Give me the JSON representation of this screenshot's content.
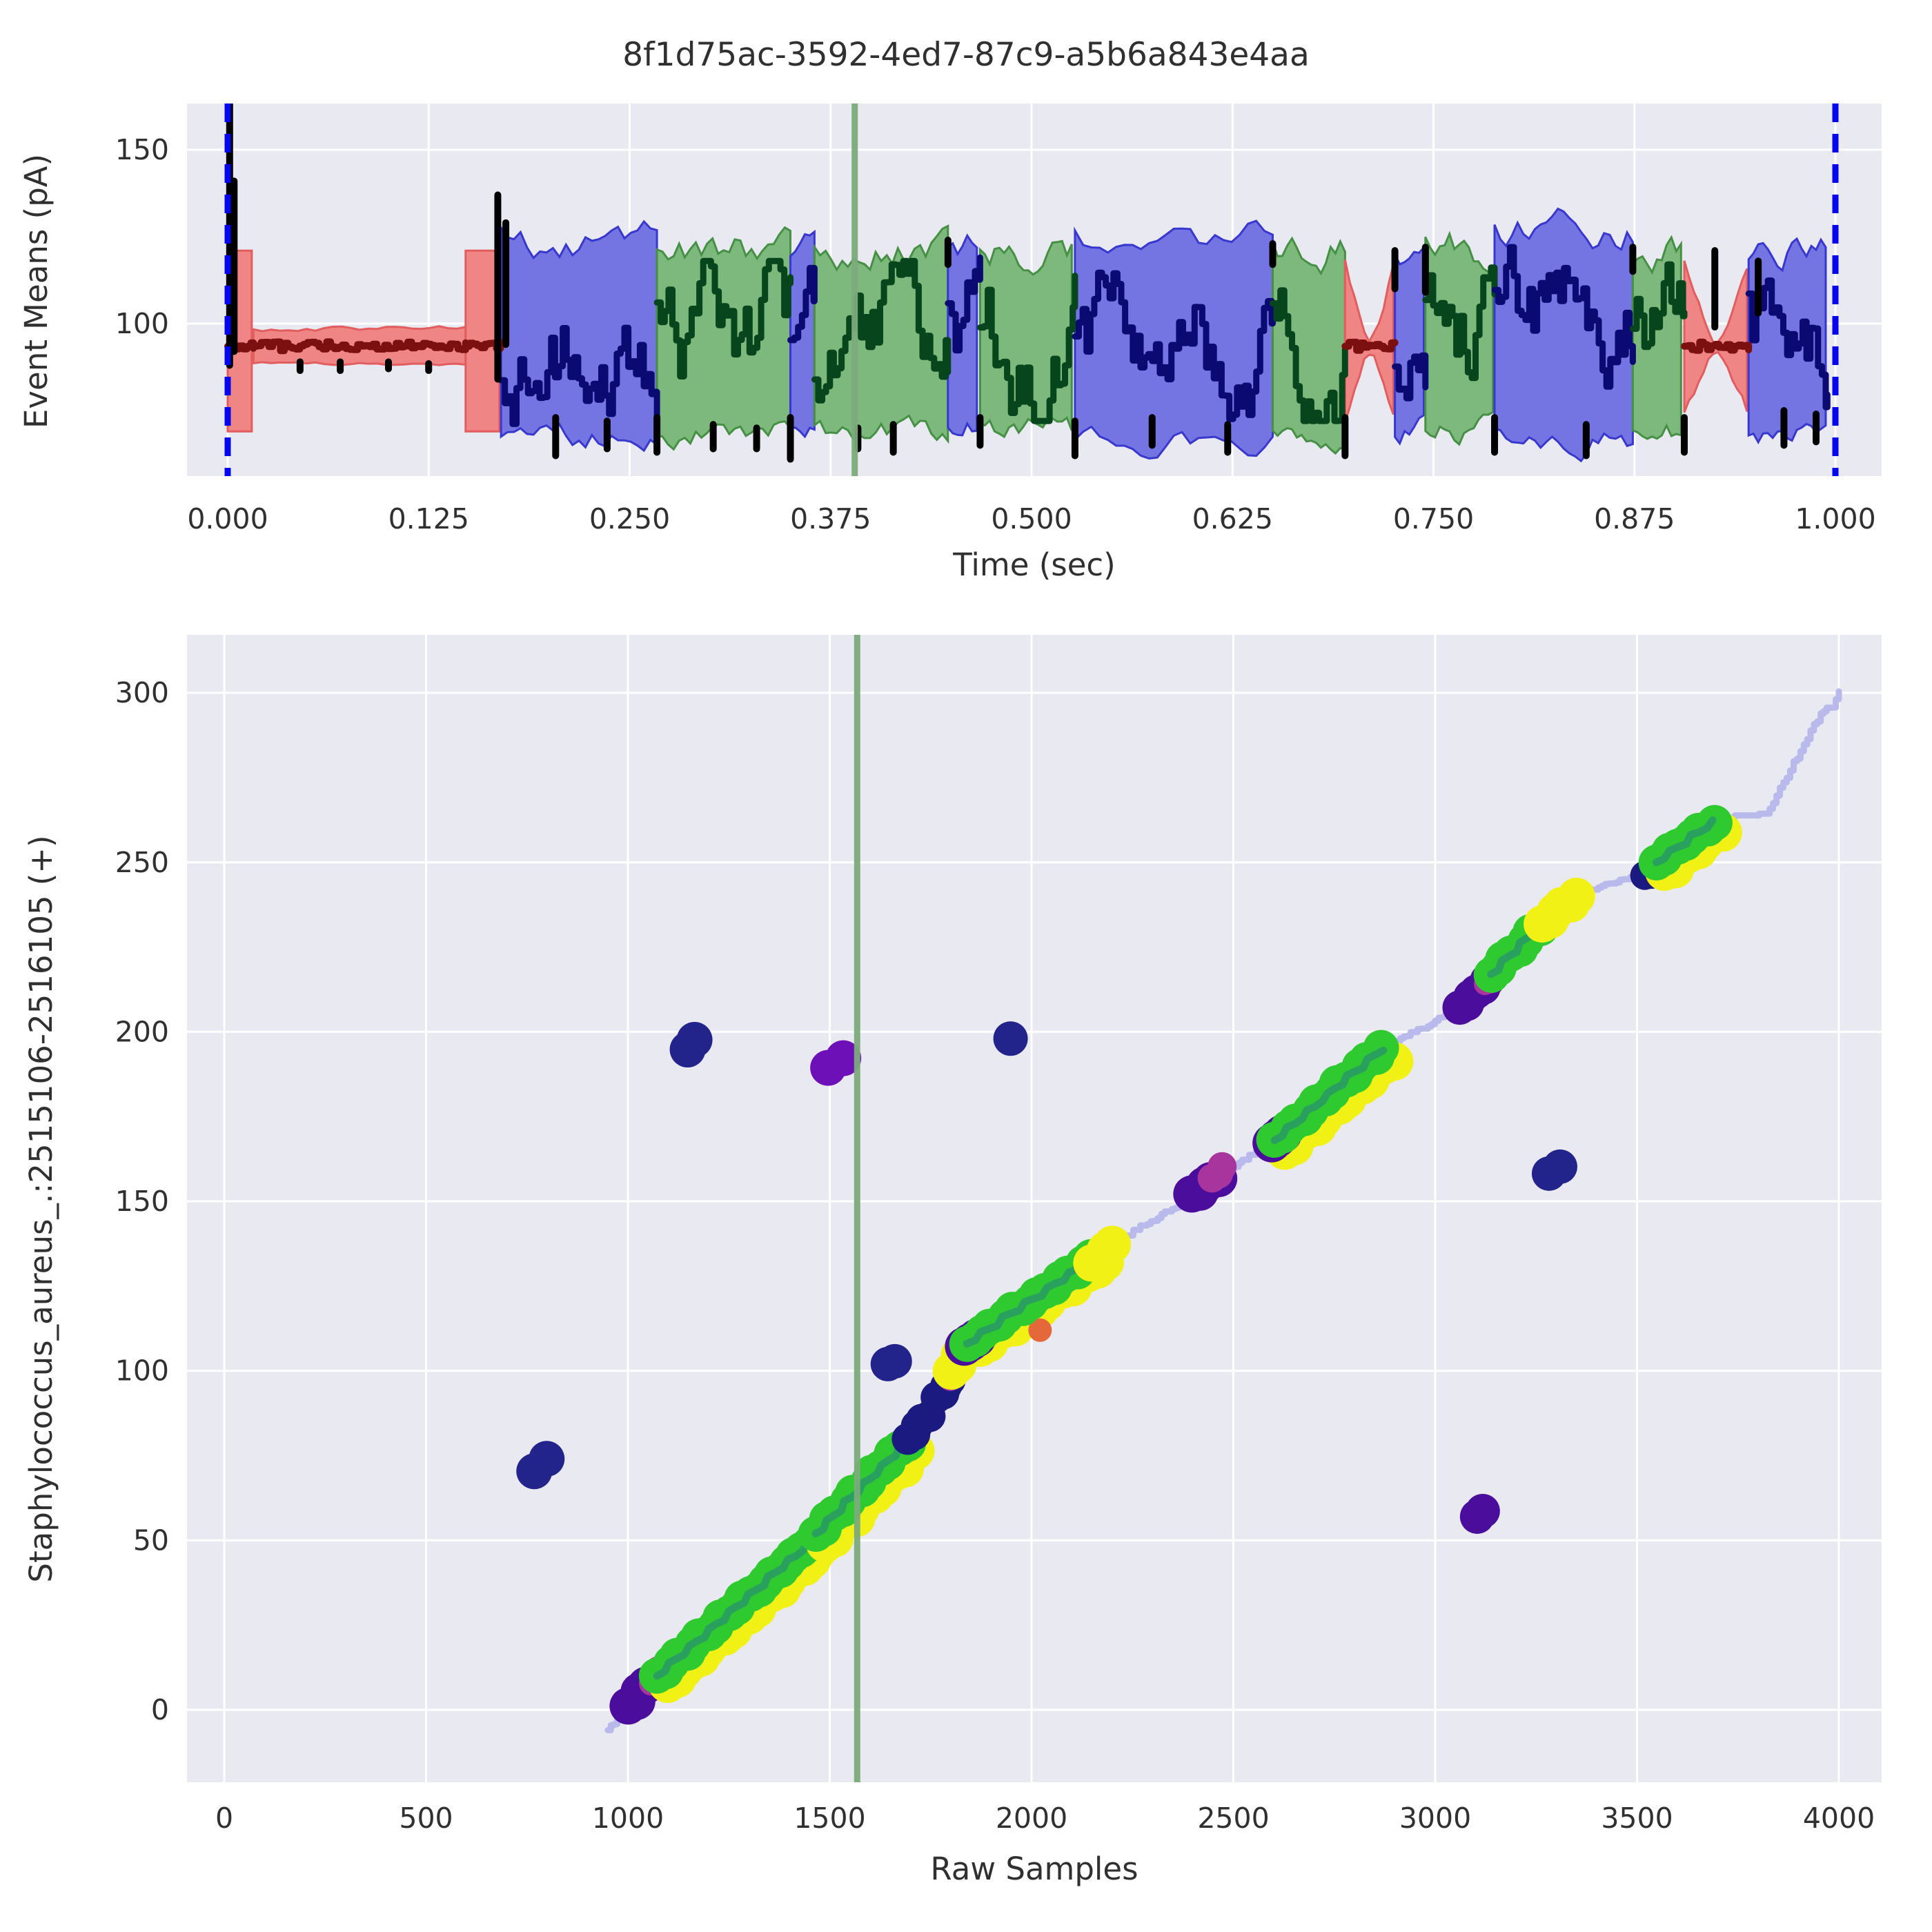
{
  "title": "8f1d75ac-3592-4ed7-87c9-a5b6a843e4aa",
  "colors": {
    "plot_bg": "#e9e9f2",
    "grid": "#ffffff",
    "text": "#303030",
    "band_red_fill": "#f08585",
    "band_red_edge": "#e25d5d",
    "band_blue_fill": "#7474e2",
    "band_blue_edge": "#3838cf",
    "band_green_fill": "#7db87d",
    "band_green_edge": "#459045",
    "signal_navy": "#0a0a72",
    "signal_darkgreen": "#07451c",
    "signal_darkred": "#7c0f10",
    "spike_black": "#000000",
    "vline_blue": "#0505ee",
    "vline_green": "#7cab7c",
    "align_line": "#b9b9ec",
    "dot_green": "#2fca30",
    "dot_teal": "#2aa05f",
    "dot_yellow": "#f1f115",
    "dot_indigo": "#4a0d9c",
    "dot_navy": "#23238c",
    "dot_navy_path": "#1a1a80",
    "dot_magenta": "#a8359e",
    "dot_orange": "#e4683a",
    "dot_violet": "#6e10b8"
  },
  "chart_data": [
    {
      "type": "area",
      "panel": "top",
      "title": "8f1d75ac-3592-4ed7-87c9-a5b6a843e4aa",
      "xlabel": "Time (sec)",
      "ylabel": "Event Means (pA)",
      "grid": true,
      "legend": null,
      "xlim": [
        -0.0253,
        1.0288
      ],
      "ylim": [
        56,
        163.3
      ],
      "xticks": [
        0,
        0.125,
        0.25,
        0.375,
        0.5,
        0.625,
        0.75,
        0.875,
        1.0
      ],
      "xtick_labels": [
        "0.000",
        "0.125",
        "0.250",
        "0.375",
        "0.500",
        "0.625",
        "0.750",
        "0.875",
        "1.000"
      ],
      "yticks": [
        100,
        150
      ],
      "ytick_labels": [
        "100",
        "150"
      ],
      "baseline_pa": 93.5,
      "signal_range_pa": [
        72,
        122
      ],
      "vlines": [
        {
          "t": 0.0,
          "color": "blue",
          "style": "dashed"
        },
        {
          "t": 1.0,
          "color": "blue",
          "style": "dashed"
        },
        {
          "t": 0.39,
          "color": "green",
          "style": "solid"
        }
      ],
      "segments": [
        {
          "t0": 0.0,
          "t1": 0.016,
          "kind": "red-wide",
          "band": [
            69,
            121
          ]
        },
        {
          "t0": 0.016,
          "t1": 0.148,
          "kind": "red-narrow",
          "band": [
            88.5,
            98.5
          ]
        },
        {
          "t0": 0.148,
          "t1": 0.17,
          "kind": "red-wide",
          "band": [
            69,
            121
          ]
        },
        {
          "t0": 0.17,
          "t1": 0.267,
          "kind": "blue",
          "band": [
            68,
            124
          ]
        },
        {
          "t0": 0.267,
          "t1": 0.35,
          "kind": "green",
          "band": [
            69,
            121
          ]
        },
        {
          "t0": 0.35,
          "t1": 0.365,
          "kind": "blue",
          "band": [
            70,
            119
          ]
        },
        {
          "t0": 0.365,
          "t1": 0.448,
          "kind": "green",
          "band": [
            69,
            121
          ]
        },
        {
          "t0": 0.448,
          "t1": 0.468,
          "kind": "blue",
          "band": [
            70,
            122
          ]
        },
        {
          "t0": 0.468,
          "t1": 0.527,
          "kind": "green",
          "band": [
            69,
            121
          ]
        },
        {
          "t0": 0.527,
          "t1": 0.65,
          "kind": "blue",
          "band": [
            67,
            126
          ]
        },
        {
          "t0": 0.65,
          "t1": 0.695,
          "kind": "green",
          "band": [
            69,
            121
          ]
        },
        {
          "t0": 0.695,
          "t1": 0.726,
          "kind": "red-bowtie",
          "band": [
            72,
            118
          ]
        },
        {
          "t0": 0.726,
          "t1": 0.745,
          "kind": "blue",
          "band": [
            70,
            120
          ]
        },
        {
          "t0": 0.745,
          "t1": 0.788,
          "kind": "green",
          "band": [
            69,
            121
          ]
        },
        {
          "t0": 0.788,
          "t1": 0.874,
          "kind": "blue",
          "band": [
            67,
            125
          ]
        },
        {
          "t0": 0.874,
          "t1": 0.906,
          "kind": "green",
          "band": [
            69,
            120
          ]
        },
        {
          "t0": 0.906,
          "t1": 0.946,
          "kind": "red-bowtie",
          "band": [
            74,
            118
          ]
        },
        {
          "t0": 0.946,
          "t1": 0.995,
          "kind": "blue",
          "band": [
            69,
            122
          ]
        }
      ],
      "spikes": [
        {
          "t": 0.0012,
          "v0": 88,
          "v1": 163
        },
        {
          "t": 0.004,
          "v0": 92,
          "v1": 141
        },
        {
          "t": 0.045,
          "v0": 89,
          "v1": 86.5
        },
        {
          "t": 0.07,
          "v0": 89,
          "v1": 86.5
        },
        {
          "t": 0.1,
          "v0": 89,
          "v1": 87
        },
        {
          "t": 0.125,
          "v0": 88.5,
          "v1": 86.5
        },
        {
          "t": 0.168,
          "v0": 84,
          "v1": 137
        },
        {
          "t": 0.173,
          "v0": 94,
          "v1": 129
        },
        {
          "t": 0.204,
          "v0": 73,
          "v1": 62
        },
        {
          "t": 0.236,
          "v0": 72,
          "v1": 64
        },
        {
          "t": 0.267,
          "v0": 73,
          "v1": 63
        },
        {
          "t": 0.302,
          "v0": 71,
          "v1": 64
        },
        {
          "t": 0.329,
          "v0": 70,
          "v1": 64
        },
        {
          "t": 0.35,
          "v0": 73,
          "v1": 61
        },
        {
          "t": 0.392,
          "v0": 70,
          "v1": 64
        },
        {
          "t": 0.414,
          "v0": 71,
          "v1": 63
        },
        {
          "t": 0.448,
          "v0": 117,
          "v1": 124
        },
        {
          "t": 0.468,
          "v0": 73,
          "v1": 65
        },
        {
          "t": 0.527,
          "v0": 72,
          "v1": 62
        },
        {
          "t": 0.575,
          "v0": 73,
          "v1": 65
        },
        {
          "t": 0.622,
          "v0": 71,
          "v1": 63
        },
        {
          "t": 0.65,
          "v0": 117,
          "v1": 123
        },
        {
          "t": 0.695,
          "v0": 73,
          "v1": 62
        },
        {
          "t": 0.726,
          "v0": 110,
          "v1": 121
        },
        {
          "t": 0.745,
          "v0": 109,
          "v1": 122
        },
        {
          "t": 0.788,
          "v0": 73,
          "v1": 63
        },
        {
          "t": 0.845,
          "v0": 71,
          "v1": 62
        },
        {
          "t": 0.874,
          "v0": 115,
          "v1": 122
        },
        {
          "t": 0.906,
          "v0": 73,
          "v1": 63
        },
        {
          "t": 0.925,
          "v0": 99,
          "v1": 121
        },
        {
          "t": 0.952,
          "v0": 103,
          "v1": 118
        },
        {
          "t": 0.968,
          "v0": 75,
          "v1": 65
        },
        {
          "t": 0.988,
          "v0": 74,
          "v1": 66
        }
      ]
    },
    {
      "type": "scatter",
      "panel": "bottom",
      "xlabel": "Raw Samples",
      "ylabel": "Staphylococcus_aureus_.:2515106-2516105 (+)",
      "grid": true,
      "legend": null,
      "xlim": [
        -92,
        4106
      ],
      "ylim": [
        -21.4,
        317
      ],
      "xticks": [
        0,
        500,
        1000,
        1500,
        2000,
        2500,
        3000,
        3500,
        4000
      ],
      "xtick_labels": [
        "0",
        "500",
        "1000",
        "1500",
        "2000",
        "2500",
        "3000",
        "3500",
        "4000"
      ],
      "yticks": [
        0,
        50,
        100,
        150,
        200,
        250,
        300
      ],
      "ytick_labels": [
        "0",
        "50",
        "100",
        "150",
        "200",
        "250",
        "300"
      ],
      "vlines": [
        {
          "x": 1568,
          "color": "green",
          "style": "solid"
        }
      ],
      "alignment_path_anchors": [
        [
          950,
          -6
        ],
        [
          1005,
          0
        ],
        [
          1070,
          10
        ],
        [
          1450,
          49
        ],
        [
          1465,
          52
        ],
        [
          1690,
          79
        ],
        [
          1745,
          87
        ],
        [
          1765,
          92
        ],
        [
          1800,
          97
        ],
        [
          1840,
          108
        ],
        [
          2155,
          133
        ],
        [
          2200,
          137
        ],
        [
          2400,
          152
        ],
        [
          2470,
          158
        ],
        [
          2600,
          168
        ],
        [
          2870,
          195
        ],
        [
          3060,
          207
        ],
        [
          3135,
          216
        ],
        [
          3275,
          233
        ],
        [
          3350,
          240
        ],
        [
          3520,
          247
        ],
        [
          3690,
          262
        ],
        [
          3725,
          263
        ],
        [
          3820,
          264
        ],
        [
          3905,
          283
        ],
        [
          3955,
          294
        ],
        [
          3985,
          296
        ],
        [
          4000,
          301
        ]
      ],
      "dot_chains": [
        {
          "color": "indigo",
          "r": 27,
          "from": [
            1002,
            1
          ],
          "to": [
            1062,
            9
          ]
        },
        {
          "color": "magenta",
          "r": 18,
          "from": [
            1056,
            8
          ],
          "to": [
            1076,
            12
          ]
        },
        {
          "color": "green",
          "r": 26,
          "from": [
            1072,
            10
          ],
          "to": [
            1448,
            49
          ],
          "fringe": [
            16,
            12
          ],
          "teal": true
        },
        {
          "color": "green",
          "r": 26,
          "from": [
            1465,
            52
          ],
          "to": [
            1690,
            79
          ],
          "fringe": [
            14,
            14
          ],
          "teal": true
        },
        {
          "color": "navy",
          "r": 23,
          "from": [
            1692,
            80
          ],
          "to": [
            1744,
            87
          ]
        },
        {
          "color": "navy",
          "r": 23,
          "from": [
            1766,
            92
          ],
          "to": [
            1800,
            97
          ]
        },
        {
          "color": "magenta",
          "r": 19,
          "from": [
            1798,
            98
          ],
          "to": [
            1822,
            102
          ]
        },
        {
          "color": "orange",
          "r": 15,
          "from": [
            1812,
            100
          ],
          "to": [
            1824,
            103
          ]
        },
        {
          "color": "yellow",
          "r": 27,
          "from": [
            1800,
            100
          ],
          "to": [
            1848,
            109
          ]
        },
        {
          "color": "green",
          "r": 26,
          "from": [
            1840,
            108
          ],
          "to": [
            2150,
            133
          ],
          "fringe": [
            18,
            4
          ],
          "teal": true,
          "purple_edge": "start",
          "orange_dots": [
            [
              2004,
              112
            ]
          ]
        },
        {
          "color": "yellow",
          "r": 27,
          "from": [
            2148,
            132
          ],
          "to": [
            2202,
            137
          ]
        },
        {
          "color": "indigo",
          "r": 27,
          "from": [
            2398,
            152
          ],
          "to": [
            2462,
            157
          ]
        },
        {
          "color": "magenta",
          "r": 21,
          "from": [
            2446,
            157
          ],
          "to": [
            2474,
            160
          ]
        },
        {
          "color": "green",
          "r": 26,
          "from": [
            2602,
            168
          ],
          "to": [
            2868,
            195
          ],
          "fringe": [
            14,
            14
          ],
          "teal": true,
          "purple_edge": "start",
          "orange_dots": [
            [
              2862,
              196
            ]
          ]
        },
        {
          "color": "indigo",
          "r": 25,
          "from": [
            3062,
            207
          ],
          "to": [
            3130,
            215
          ]
        },
        {
          "color": "magenta",
          "r": 16,
          "from": [
            3124,
            214
          ],
          "to": [
            3140,
            216
          ]
        },
        {
          "color": "green",
          "r": 26,
          "from": [
            3138,
            217
          ],
          "to": [
            3274,
            233
          ],
          "teal": true
        },
        {
          "color": "yellow",
          "r": 27,
          "from": [
            3264,
            232
          ],
          "to": [
            3350,
            240
          ]
        },
        {
          "color": "navy",
          "r": 21,
          "from": [
            3520,
            246
          ],
          "to": [
            3552,
            249
          ]
        },
        {
          "color": "green",
          "r": 26,
          "from": [
            3548,
            250
          ],
          "to": [
            3690,
            262
          ],
          "fringe": [
            12,
            14
          ],
          "teal": true
        }
      ],
      "outliers": [
        {
          "x": 768,
          "y": 72,
          "color": "navy",
          "r": 26,
          "lobes": [
            [
              0,
              8
            ],
            [
              18,
              -10
            ]
          ]
        },
        {
          "x": 1148,
          "y": 196,
          "color": "navy",
          "r": 26,
          "lobes": [
            [
              0,
              6
            ],
            [
              10,
              -8
            ]
          ]
        },
        {
          "x": 1496,
          "y": 191,
          "color": "violet",
          "r": 26,
          "lobes": [
            [
              0,
              8
            ],
            [
              22,
              -6
            ]
          ]
        },
        {
          "x": 1948,
          "y": 198,
          "color": "navy",
          "r": 25,
          "lobes": [
            [
              0,
              0
            ]
          ]
        },
        {
          "x": 1644,
          "y": 102,
          "color": "navy",
          "r": 25,
          "lobes": [
            [
              0,
              0
            ],
            [
              10,
              -4
            ]
          ]
        },
        {
          "x": 3104,
          "y": 57,
          "color": "indigo",
          "r": 25,
          "lobes": [
            [
              0,
              0
            ],
            [
              8,
              -8
            ]
          ]
        },
        {
          "x": 3282,
          "y": 159,
          "color": "navy",
          "r": 25,
          "lobes": [
            [
              0,
              4
            ],
            [
              16,
              -6
            ]
          ]
        }
      ]
    }
  ]
}
